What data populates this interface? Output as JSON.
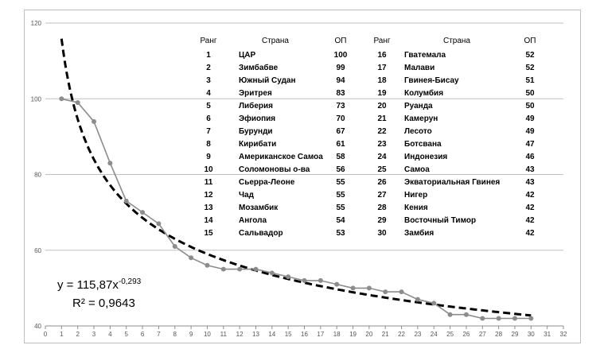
{
  "chart_data": {
    "type": "line",
    "x": [
      1,
      2,
      3,
      4,
      5,
      6,
      7,
      8,
      9,
      10,
      11,
      12,
      13,
      14,
      15,
      16,
      17,
      18,
      19,
      20,
      21,
      22,
      23,
      24,
      25,
      26,
      27,
      28,
      29,
      30
    ],
    "series": [
      {
        "values": [
          100,
          99,
          94,
          83,
          73,
          70,
          67,
          61,
          58,
          56,
          55,
          55,
          55,
          54,
          53,
          52,
          52,
          51,
          50,
          50,
          49,
          49,
          47,
          46,
          43,
          43,
          42,
          42,
          42,
          42
        ],
        "color": "#8c8c8c"
      }
    ],
    "trendline": {
      "type": "power",
      "a": 115.87,
      "b": -0.293,
      "equation": "y = 115,87x",
      "exponent": "-0,293",
      "r2": "R² = 0,9643",
      "color": "#000000"
    },
    "xlim": [
      0,
      32
    ],
    "ylim": [
      40,
      120
    ],
    "xticks": [
      "0",
      "1",
      "2",
      "3",
      "4",
      "5",
      "6",
      "7",
      "8",
      "9",
      "10",
      "11",
      "12",
      "13",
      "14",
      "15",
      "16",
      "17",
      "18",
      "19",
      "20",
      "21",
      "22",
      "23",
      "24",
      "25",
      "26",
      "27",
      "28",
      "29",
      "30",
      "31",
      "32"
    ],
    "yticks": [
      "40",
      "60",
      "80",
      "100",
      "120"
    ],
    "grid": true,
    "title": "",
    "xlabel": "",
    "ylabel": ""
  },
  "table": {
    "headers": {
      "rank": "Ранг",
      "country": "Страна",
      "value": "ОП"
    },
    "rows": [
      [
        "1",
        "ЦАР",
        "100"
      ],
      [
        "2",
        "Зимбабве",
        "99"
      ],
      [
        "3",
        "Южный Судан",
        "94"
      ],
      [
        "4",
        "Эритрея",
        "83"
      ],
      [
        "5",
        "Либерия",
        "73"
      ],
      [
        "6",
        "Эфиопия",
        "70"
      ],
      [
        "7",
        "Бурунди",
        "67"
      ],
      [
        "8",
        "Кирибати",
        "61"
      ],
      [
        "9",
        "Американское Самоа",
        "58"
      ],
      [
        "10",
        "Соломоновы о-ва",
        "56"
      ],
      [
        "11",
        "Сьерра-Леоне",
        "55"
      ],
      [
        "12",
        "Чад",
        "55"
      ],
      [
        "13",
        "Мозамбик",
        "55"
      ],
      [
        "14",
        "Ангола",
        "54"
      ],
      [
        "15",
        "Сальвадор",
        "53"
      ],
      [
        "16",
        "Гватемала",
        "52"
      ],
      [
        "17",
        "Малави",
        "52"
      ],
      [
        "18",
        "Гвинея-Бисау",
        "51"
      ],
      [
        "19",
        "Колумбия",
        "50"
      ],
      [
        "20",
        "Руанда",
        "50"
      ],
      [
        "21",
        "Камерун",
        "49"
      ],
      [
        "22",
        "Лесото",
        "49"
      ],
      [
        "23",
        "Ботсвана",
        "47"
      ],
      [
        "24",
        "Индонезия",
        "46"
      ],
      [
        "25",
        "Самоа",
        "43"
      ],
      [
        "26",
        "Экваториальная Гвинея",
        "43"
      ],
      [
        "27",
        "Нигер",
        "42"
      ],
      [
        "28",
        "Кения",
        "42"
      ],
      [
        "29",
        "Восточный Тимор",
        "42"
      ],
      [
        "30",
        "Замбия",
        "42"
      ]
    ]
  }
}
